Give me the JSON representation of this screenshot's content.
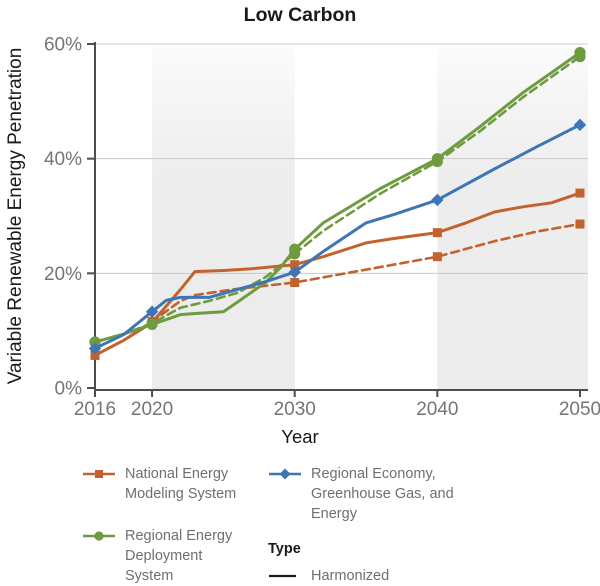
{
  "title": "Low Carbon",
  "axes": {
    "y_title": "Variable Renewable Energy Penetration",
    "x_title": "Year"
  },
  "colors": {
    "nems_orange": "#c2622e",
    "reeds_green": "#6e9b3f",
    "regge_blue": "#3e76b5",
    "band_gray": "#ececec",
    "gridline": "#c9c9c9",
    "axis_line": "#4d4d4d",
    "tick_label": "#757575",
    "legend_text": "#6f6f6f",
    "text_black": "#1a1a1a"
  },
  "chart_data": {
    "type": "line",
    "title": "Low Carbon",
    "xlabel": "Year",
    "ylabel": "Variable Renewable Energy Penetration",
    "xlim": [
      2016,
      2050
    ],
    "ylim": [
      0,
      60
    ],
    "y_unit": "%",
    "grid": "horizontal-only",
    "x_ticks": [
      {
        "value": 2016,
        "label": "2016"
      },
      {
        "value": 2020,
        "label": "2020"
      },
      {
        "value": 2030,
        "label": "2030"
      },
      {
        "value": 2040,
        "label": "2040"
      },
      {
        "value": 2050,
        "label": "2050"
      }
    ],
    "y_ticks": [
      {
        "value": 0,
        "label": "0%"
      },
      {
        "value": 20,
        "label": "20%"
      },
      {
        "value": 40,
        "label": "40%"
      },
      {
        "value": 60,
        "label": "60%"
      }
    ],
    "shaded_bands": [
      {
        "from": 2020,
        "to": 2030
      },
      {
        "from": 2040,
        "to": null
      }
    ],
    "marker_years": [
      2016,
      2020,
      2030,
      2040,
      2050
    ],
    "series": [
      {
        "name": "National Energy Modeling System",
        "harmonization_type": "Harmonized",
        "line_style": "solid",
        "color": "#c2622e",
        "marker": "square",
        "points": [
          [
            2016,
            5.7
          ],
          [
            2018,
            8.3
          ],
          [
            2020,
            11.4
          ],
          [
            2022,
            17.2
          ],
          [
            2023,
            20.3
          ],
          [
            2025,
            20.5
          ],
          [
            2027,
            20.8
          ],
          [
            2030,
            21.5
          ],
          [
            2032,
            22.9
          ],
          [
            2035,
            25.3
          ],
          [
            2037,
            26.1
          ],
          [
            2040,
            27.1
          ],
          [
            2042,
            28.8
          ],
          [
            2044,
            30.7
          ],
          [
            2046,
            31.6
          ],
          [
            2048,
            32.3
          ],
          [
            2050,
            34.0
          ]
        ]
      },
      {
        "name": "National Energy Modeling System",
        "harmonization_type": "dashed",
        "line_style": "dashed",
        "color": "#c2622e",
        "marker": "square",
        "points": [
          [
            2016,
            5.7
          ],
          [
            2018,
            8.3
          ],
          [
            2020,
            11.6
          ],
          [
            2022,
            15.2
          ],
          [
            2023,
            16.2
          ],
          [
            2026,
            17.3
          ],
          [
            2030,
            18.4
          ],
          [
            2034,
            20.2
          ],
          [
            2040,
            22.9
          ],
          [
            2044,
            25.6
          ],
          [
            2047,
            27.3
          ],
          [
            2050,
            28.6
          ]
        ]
      },
      {
        "name": "Regional Energy Deployment System",
        "harmonization_type": "Harmonized",
        "line_style": "solid",
        "color": "#6e9b3f",
        "marker": "circle",
        "points": [
          [
            2016,
            8.0
          ],
          [
            2018,
            9.4
          ],
          [
            2020,
            11.1
          ],
          [
            2022,
            12.8
          ],
          [
            2023,
            13.0
          ],
          [
            2025,
            13.3
          ],
          [
            2026,
            15.0
          ],
          [
            2028,
            18.5
          ],
          [
            2029,
            21.0
          ],
          [
            2030,
            24.2
          ],
          [
            2032,
            28.8
          ],
          [
            2036,
            34.8
          ],
          [
            2040,
            40.0
          ],
          [
            2043,
            45.6
          ],
          [
            2046,
            51.5
          ],
          [
            2050,
            58.5
          ]
        ]
      },
      {
        "name": "Regional Energy Deployment System",
        "harmonization_type": "dashed",
        "line_style": "dashed",
        "color": "#6e9b3f",
        "marker": "circle",
        "points": [
          [
            2016,
            8.0
          ],
          [
            2018,
            9.4
          ],
          [
            2020,
            11.3
          ],
          [
            2022,
            14.0
          ],
          [
            2024,
            15.2
          ],
          [
            2026,
            16.6
          ],
          [
            2028,
            19.4
          ],
          [
            2030,
            23.4
          ],
          [
            2032,
            27.4
          ],
          [
            2036,
            33.9
          ],
          [
            2040,
            39.5
          ],
          [
            2043,
            44.8
          ],
          [
            2046,
            50.7
          ],
          [
            2050,
            57.8
          ]
        ]
      },
      {
        "name": "Regional Economy, Greenhouse Gas, and Energy",
        "harmonization_type": "Harmonized",
        "line_style": "solid",
        "color": "#3e76b5",
        "marker": "diamond",
        "points": [
          [
            2016,
            6.9
          ],
          [
            2018,
            9.3
          ],
          [
            2020,
            13.3
          ],
          [
            2021,
            15.3
          ],
          [
            2022,
            15.8
          ],
          [
            2024,
            15.8
          ],
          [
            2026,
            17.2
          ],
          [
            2028,
            18.6
          ],
          [
            2030,
            20.2
          ],
          [
            2032,
            23.8
          ],
          [
            2035,
            28.8
          ],
          [
            2037,
            30.3
          ],
          [
            2040,
            32.8
          ],
          [
            2044,
            38.2
          ],
          [
            2047,
            42.1
          ],
          [
            2050,
            45.9
          ]
        ]
      }
    ],
    "legend_position": "bottom"
  },
  "legend": {
    "items": [
      {
        "label": "National Energy\nModeling System",
        "color": "#c2622e",
        "marker": "square"
      },
      {
        "label": "Regional Energy\nDeployment System",
        "color": "#6e9b3f",
        "marker": "circle"
      },
      {
        "label": "Regional Economy,\nGreenhouse Gas, and\nEnergy",
        "color": "#3e76b5",
        "marker": "diamond"
      }
    ],
    "type_header": "Type",
    "type_items": [
      {
        "label": "Harmonized",
        "line_style": "solid",
        "color": "#1a1a1a"
      }
    ]
  }
}
